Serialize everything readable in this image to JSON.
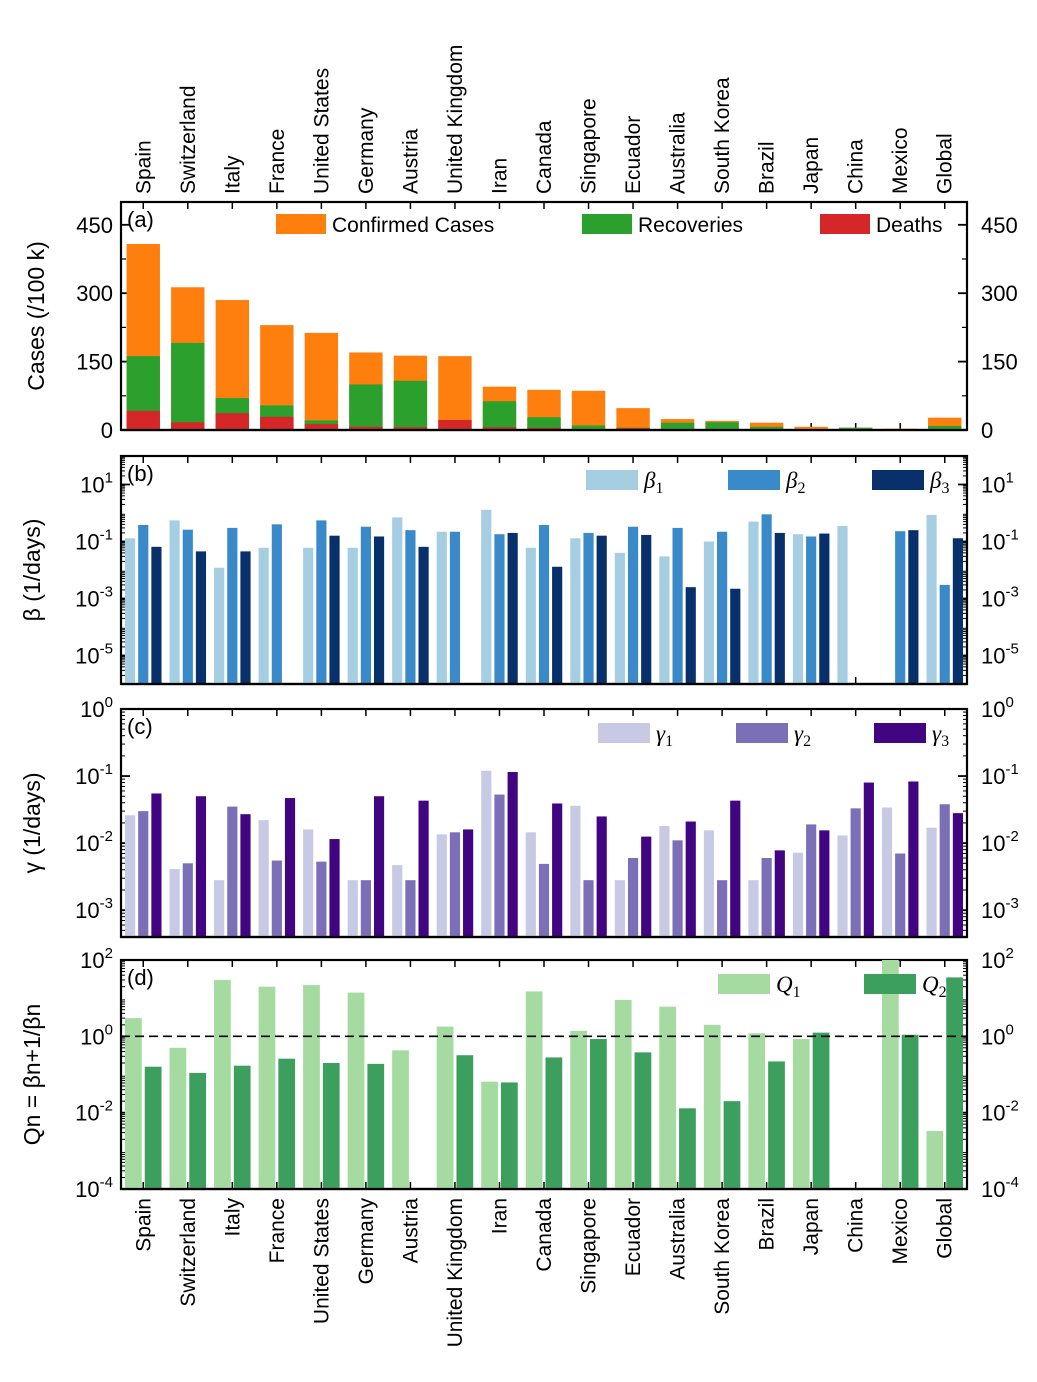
{
  "categories": [
    "Spain",
    "Switzerland",
    "Italy",
    "France",
    "United States",
    "Germany",
    "Austria",
    "United Kingdom",
    "Iran",
    "Canada",
    "Singapore",
    "Ecuador",
    "Australia",
    "South Korea",
    "Brazil",
    "Japan",
    "China",
    "Mexico",
    "Global"
  ],
  "chart_data": [
    {
      "panel": "(a)",
      "type": "bar",
      "ylabel": "Cases (/100 k)",
      "ylim": [
        0,
        500
      ],
      "yticks": [
        "0",
        "150",
        "300",
        "450"
      ],
      "legend_position": "top",
      "series": [
        {
          "name": "Confirmed Cases",
          "color": "#ff7f0e",
          "values": [
            408,
            313,
            285,
            230,
            213,
            170,
            163,
            162,
            95,
            88,
            86,
            48,
            24,
            20,
            16,
            7,
            5,
            3,
            27
          ]
        },
        {
          "name": "Recoveries",
          "color": "#2ca02c",
          "values": [
            162,
            191,
            70,
            54,
            21,
            100,
            108,
            5,
            63,
            28,
            10,
            5,
            16,
            17,
            7,
            2,
            5,
            2,
            9
          ]
        },
        {
          "name": "Deaths",
          "color": "#d62728",
          "values": [
            42,
            17,
            37,
            29,
            13,
            7,
            6,
            22,
            6,
            5,
            1,
            4,
            1,
            1,
            1,
            1,
            1,
            1,
            2
          ]
        }
      ]
    },
    {
      "panel": "(b)",
      "type": "bar",
      "yscale": "log",
      "ylabel": "β (1/days)",
      "ylim_log10": [
        -6,
        2
      ],
      "yticks": [
        {
          "base": "10",
          "exp": "1"
        },
        {
          "base": "10",
          "exp": "-1"
        },
        {
          "base": "10",
          "exp": "-3"
        },
        {
          "base": "10",
          "exp": "-5"
        }
      ],
      "series": [
        {
          "name": "β1",
          "color": "#a6cee3",
          "values": [
            0.13,
            0.55,
            0.012,
            0.06,
            0.06,
            0.06,
            0.7,
            0.22,
            1.3,
            0.06,
            0.13,
            0.04,
            0.03,
            0.1,
            0.5,
            0.18,
            0.35,
            null,
            0.85
          ]
        },
        {
          "name": "β2",
          "color": "#3a89c9",
          "values": [
            0.38,
            0.26,
            0.3,
            0.4,
            0.55,
            0.33,
            0.25,
            0.22,
            0.18,
            0.38,
            0.2,
            0.33,
            0.3,
            0.22,
            0.9,
            0.15,
            null,
            0.23,
            0.003
          ]
        },
        {
          "name": "β3",
          "color": "#08306b",
          "values": [
            0.065,
            0.045,
            0.045,
            null,
            0.16,
            0.15,
            0.065,
            null,
            0.2,
            0.013,
            0.16,
            0.17,
            0.0025,
            0.0022,
            0.2,
            0.19,
            null,
            0.25,
            0.13
          ]
        }
      ]
    },
    {
      "panel": "(c)",
      "type": "bar",
      "yscale": "log",
      "ylabel": "γ (1/days)",
      "ylim_log10": [
        -3.4,
        0
      ],
      "yticks": [
        {
          "base": "10",
          "exp": "0"
        },
        {
          "base": "10",
          "exp": "-1"
        },
        {
          "base": "10",
          "exp": "-2"
        },
        {
          "base": "10",
          "exp": "-3"
        }
      ],
      "series": [
        {
          "name": "γ1",
          "color": "#c7c9e5",
          "values": [
            0.026,
            0.0041,
            0.0028,
            0.022,
            0.016,
            0.0028,
            0.0047,
            0.0135,
            0.12,
            0.0145,
            0.036,
            0.0028,
            0.018,
            0.0155,
            0.0028,
            0.0072,
            0.013,
            0.034,
            0.017
          ]
        },
        {
          "name": "γ2",
          "color": "#7b70b8",
          "values": [
            0.03,
            0.005,
            0.035,
            0.0055,
            0.0053,
            0.0028,
            0.0028,
            0.0145,
            0.053,
            0.0049,
            0.0028,
            0.006,
            0.011,
            0.0028,
            0.006,
            0.019,
            0.033,
            0.007,
            0.038
          ]
        },
        {
          "name": "γ3",
          "color": "#410582",
          "values": [
            0.055,
            0.05,
            0.027,
            0.047,
            0.0115,
            0.05,
            0.043,
            0.016,
            0.115,
            0.039,
            0.025,
            0.0125,
            0.021,
            0.043,
            0.0078,
            0.0155,
            0.08,
            0.083,
            0.028
          ]
        }
      ]
    },
    {
      "panel": "(d)",
      "type": "bar",
      "yscale": "log",
      "ylabel": "Qn = βn+1/βn",
      "ylim_log10": [
        -4,
        2
      ],
      "reference_line": 1,
      "yticks": [
        {
          "base": "10",
          "exp": "2"
        },
        {
          "base": "10",
          "exp": "0"
        },
        {
          "base": "10",
          "exp": "-2"
        },
        {
          "base": "10",
          "exp": "-4"
        }
      ],
      "series": [
        {
          "name": "Q1",
          "color": "#a5dba0",
          "values": [
            3,
            0.5,
            30,
            20,
            22,
            14,
            0.43,
            1.8,
            0.065,
            15,
            1.4,
            9,
            6,
            2,
            1.2,
            0.85,
            null,
            100,
            0.0033
          ]
        },
        {
          "name": "Q2",
          "color": "#3d9f5d",
          "values": [
            0.16,
            0.11,
            0.17,
            0.26,
            0.2,
            0.19,
            null,
            0.32,
            0.062,
            0.28,
            0.85,
            0.38,
            0.013,
            0.02,
            0.22,
            1.25,
            null,
            1.1,
            35
          ]
        }
      ]
    }
  ]
}
